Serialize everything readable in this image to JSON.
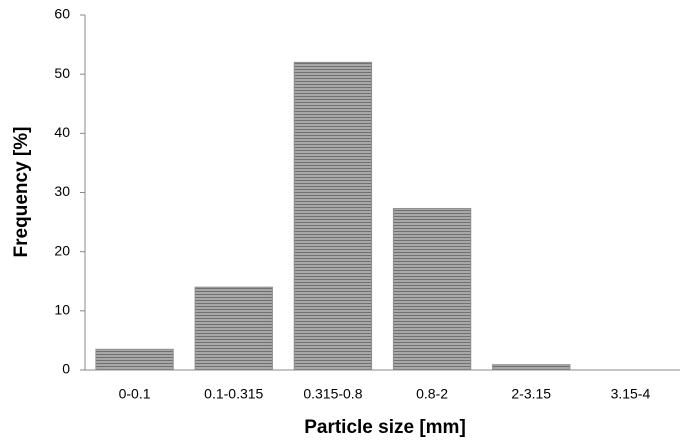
{
  "chart_data": {
    "type": "bar",
    "x_label": "Particle size [mm]",
    "y_label": "Frequency [%]",
    "categories": [
      "0-0.1",
      "0.1-0.315",
      "0.315-0.8",
      "0.8-2",
      "2-3.15",
      "3.15-4"
    ],
    "values": [
      3.5,
      14,
      52,
      27.3,
      0.9,
      0
    ],
    "color": "#8f8f8f",
    "ylim": [
      0,
      60
    ],
    "yticks": [
      0,
      10,
      20,
      30,
      40,
      50,
      60
    ],
    "grid": false
  }
}
